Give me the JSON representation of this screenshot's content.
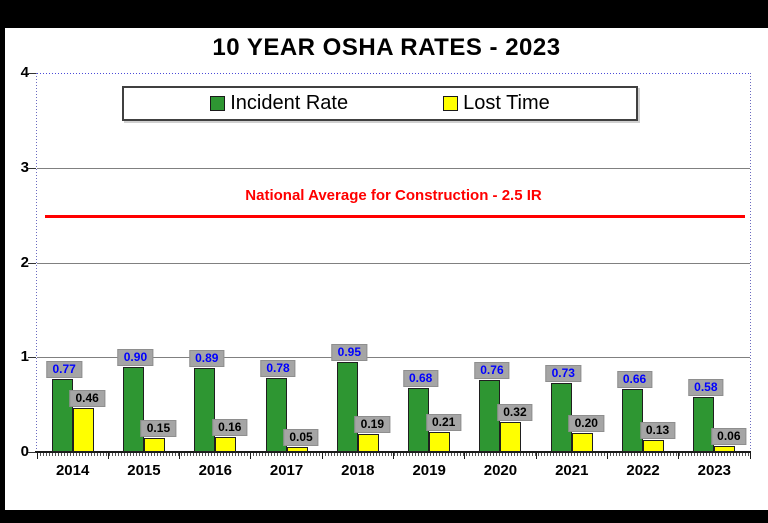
{
  "chart_data": {
    "type": "bar",
    "title": "10 YEAR OSHA RATES - 2023",
    "categories": [
      "2014",
      "2015",
      "2016",
      "2017",
      "2018",
      "2019",
      "2020",
      "2021",
      "2022",
      "2023"
    ],
    "series": [
      {
        "name": "Incident Rate",
        "color": "#2E9632",
        "label_text_color": "#0000FF",
        "values": [
          0.77,
          0.9,
          0.89,
          0.78,
          0.95,
          0.68,
          0.76,
          0.73,
          0.66,
          0.58
        ]
      },
      {
        "name": "Lost Time",
        "color": "#FFFF00",
        "label_text_color": "#000000",
        "values": [
          0.46,
          0.15,
          0.16,
          0.05,
          0.19,
          0.21,
          0.32,
          0.2,
          0.13,
          0.06
        ]
      }
    ],
    "ylim": [
      0,
      4
    ],
    "y_ticks": [
      0,
      1,
      2,
      3,
      4
    ],
    "grid": true,
    "legend_position": "top",
    "reference_line": {
      "value": 2.5,
      "label": "National Average for Construction - 2.5 IR",
      "color": "#FF0000"
    },
    "style": {
      "value_label_background": "#A5A5A5",
      "gridline_color": "#808080",
      "plot_border_color": "#4B4BD8",
      "axis_color": "#1A1A1A",
      "background": "#FFFFFF",
      "frame_color": "#000000"
    }
  }
}
